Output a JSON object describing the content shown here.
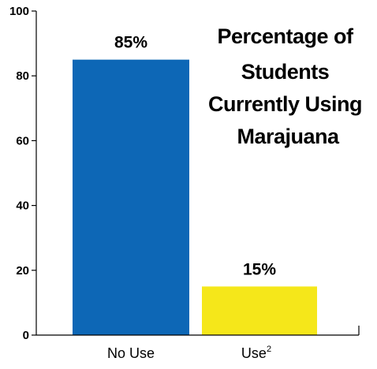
{
  "chart_data": {
    "type": "bar",
    "title": [
      "Percentage of",
      "Students",
      "Currently Using",
      "Marajuana"
    ],
    "categories": [
      "No Use",
      "Use"
    ],
    "category_superscripts": [
      "",
      "2"
    ],
    "values": [
      85,
      15
    ],
    "value_labels": [
      "85%",
      "15%"
    ],
    "bar_colors": [
      "#0d67b6",
      "#f5e71a"
    ],
    "ylim": [
      0,
      100
    ],
    "yticks": [
      0,
      20,
      40,
      60,
      80,
      100
    ],
    "xlabel": "",
    "ylabel": "",
    "grid": false,
    "legend": "none"
  }
}
